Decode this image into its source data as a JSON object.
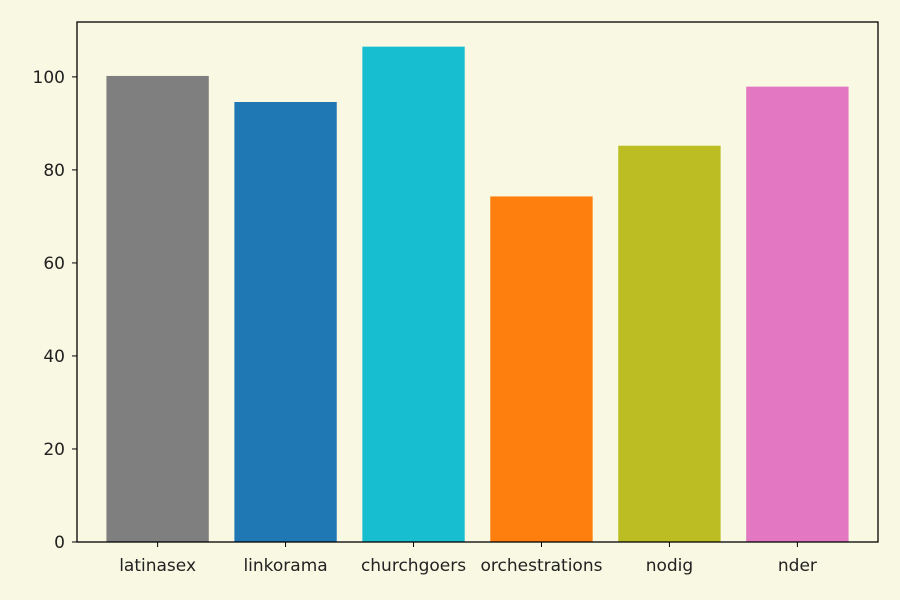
{
  "chart_data": {
    "type": "bar",
    "title": "",
    "xlabel": "",
    "ylabel": "",
    "categories": [
      "latinasex",
      "linkorama",
      "churchgoers",
      "orchestrations",
      "nodig",
      "nder"
    ],
    "values": [
      100.2,
      94.6,
      106.5,
      74.3,
      85.2,
      97.9
    ],
    "colors": [
      "#7f7f7f",
      "#1f77b4",
      "#17becf",
      "#ff7f0e",
      "#bcbd22",
      "#e377c2"
    ],
    "ylim": [
      0,
      111.8
    ],
    "yticks": [
      0,
      20,
      40,
      60,
      80,
      100
    ],
    "grid": false,
    "background": "#f9f8e3",
    "plot_background": "#f9f8e3"
  }
}
